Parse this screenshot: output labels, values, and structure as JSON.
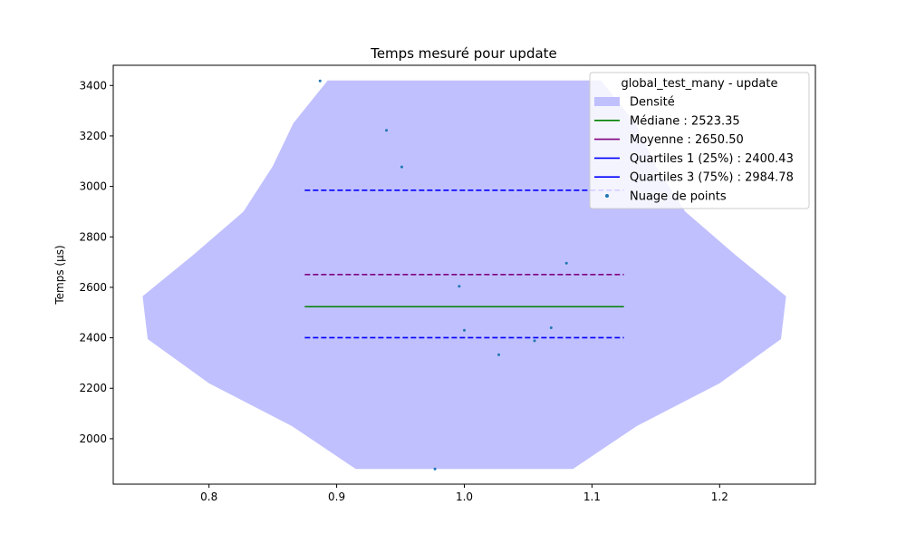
{
  "chart_data": {
    "type": "violin",
    "title": "Temps mesuré pour update",
    "xlabel": "",
    "ylabel": "Temps (µs)",
    "xlim": [
      0.725,
      1.275
    ],
    "ylim": [
      1820,
      3480
    ],
    "xticks": [
      0.8,
      0.9,
      1.0,
      1.1,
      1.2
    ],
    "xtick_labels": [
      "0.8",
      "0.9",
      "1.0",
      "1.1",
      "1.2"
    ],
    "yticks": [
      2000,
      2200,
      2400,
      2600,
      2800,
      3000,
      3200,
      3400
    ],
    "ytick_labels": [
      "2000",
      "2200",
      "2400",
      "2600",
      "2800",
      "3000",
      "3200",
      "3400"
    ],
    "grid": false,
    "legend": {
      "title": "global_test_many - update",
      "position": "top-right",
      "entries": [
        {
          "label": "Densité",
          "kind": "patch",
          "color": "#c0c0ff"
        },
        {
          "label": "Médiane : 2523.35",
          "kind": "line",
          "style": "solid",
          "color": "#008000"
        },
        {
          "label": "Moyenne : 2650.50",
          "kind": "line",
          "style": "solid",
          "color": "#800080"
        },
        {
          "label": "Quartiles 1 (25%) : 2400.43",
          "kind": "line",
          "style": "solid",
          "color": "#0000ff"
        },
        {
          "label": "Quartiles 3 (75%) : 2984.78",
          "kind": "line",
          "style": "solid",
          "color": "#0000ff"
        },
        {
          "label": "Nuage de points",
          "kind": "marker",
          "color": "#1f77b4"
        }
      ]
    },
    "density": {
      "color": "#c0c0ff",
      "center": 1.0,
      "profile": [
        {
          "y": 1880,
          "half_width": 0.085
        },
        {
          "y": 2050,
          "half_width": 0.135
        },
        {
          "y": 2220,
          "half_width": 0.2
        },
        {
          "y": 2395,
          "half_width": 0.248
        },
        {
          "y": 2565,
          "half_width": 0.252
        },
        {
          "y": 2730,
          "half_width": 0.212
        },
        {
          "y": 2900,
          "half_width": 0.173
        },
        {
          "y": 3080,
          "half_width": 0.15
        },
        {
          "y": 3250,
          "half_width": 0.134
        },
        {
          "y": 3420,
          "half_width": 0.107
        }
      ]
    },
    "stat_lines": [
      {
        "name": "median",
        "value": 2523.35,
        "x_start": 0.875,
        "x_end": 1.125,
        "color": "#008000",
        "dashed": false
      },
      {
        "name": "mean",
        "value": 2650.5,
        "x_start": 0.875,
        "x_end": 1.125,
        "color": "#800080",
        "dashed": true
      },
      {
        "name": "q1",
        "value": 2400.43,
        "x_start": 0.875,
        "x_end": 1.125,
        "color": "#0000ff",
        "dashed": true
      },
      {
        "name": "q3",
        "value": 2984.78,
        "x_start": 0.875,
        "x_end": 1.125,
        "color": "#0000ff",
        "dashed": true
      }
    ],
    "points": {
      "color": "#1f77b4",
      "values": [
        {
          "x": 0.887,
          "y": 3418
        },
        {
          "x": 0.939,
          "y": 3222
        },
        {
          "x": 0.951,
          "y": 3077
        },
        {
          "x": 0.996,
          "y": 2604
        },
        {
          "x": 1.0,
          "y": 2430
        },
        {
          "x": 1.027,
          "y": 2333
        },
        {
          "x": 1.055,
          "y": 2388
        },
        {
          "x": 1.068,
          "y": 2440
        },
        {
          "x": 1.08,
          "y": 2696
        },
        {
          "x": 0.977,
          "y": 1880
        }
      ]
    }
  }
}
